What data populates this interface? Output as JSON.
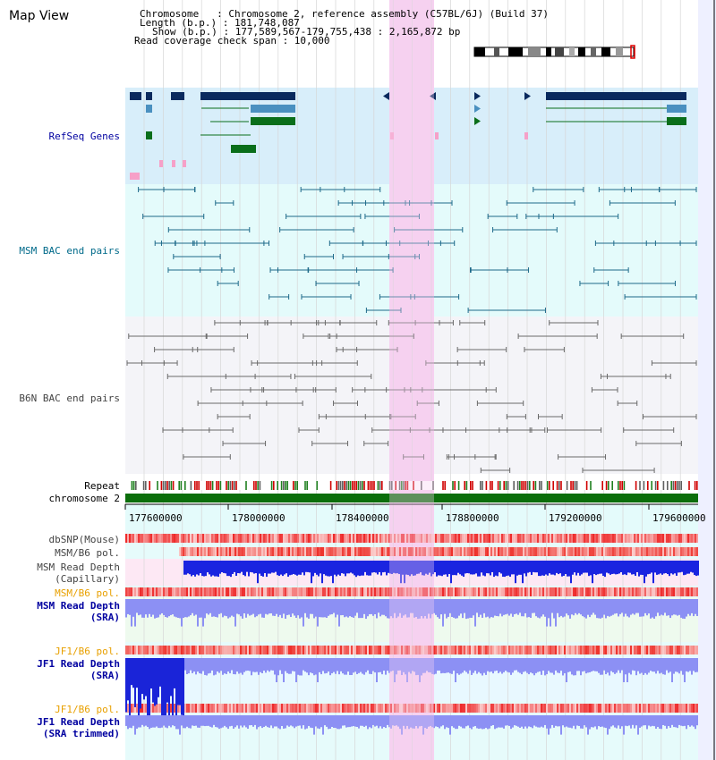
{
  "view_title": "Map View",
  "header": {
    "chromosome": "Chromosome   : Chromosome 2, reference assembly (C57BL/6J) (Build 37)",
    "length": "Length (b.p.) : 181,748,087",
    "show": "Show (b.p.) : 177,589,567-179,755,438 : 2,165,872 bp",
    "coverage_span": "Read coverage check span : 10,000"
  },
  "tracks": {
    "refseq": "RefSeq Genes",
    "msm_bac": "MSM BAC end pairs",
    "b6n_bac": "B6N BAC end pairs",
    "repeat": "Repeat",
    "chromosome": "chromosome 2",
    "dbsnp": "dbSNP(Mouse)",
    "msm_b6_pol_1": "MSM/B6 pol.",
    "msm_read_depth_cap_1": "MSM Read Depth",
    "msm_read_depth_cap_2": "(Capillary)",
    "msm_b6_pol_2": "MSM/B6 pol.",
    "msm_read_depth_sra_1": "MSM Read Depth",
    "msm_read_depth_sra_2": "(SRA)",
    "jf1_b6_pol_1": "JF1/B6 pol.",
    "jf1_read_depth_sra_1": "JF1 Read Depth",
    "jf1_read_depth_sra_2": "(SRA)",
    "jf1_b6_pol_2": "JF1/B6 pol.",
    "jf1_read_depth_trim_1": "JF1 Read Depth",
    "jf1_read_depth_trim_2": "(SRA trimmed)"
  },
  "axis_ticks": [
    "177600000",
    "178000000",
    "178400000",
    "178800000",
    "179200000",
    "179600000"
  ],
  "colors": {
    "highlight": "#f6d2f0",
    "refseq_bg": "#d8eefa",
    "bac_bg": "#e4fbfb",
    "b6n_bg": "#f4f4f8",
    "chrom_green": "#0b6e0b",
    "depth_blue": "#2030e8",
    "depth_light": "#8c90f4",
    "pol_red": "#f08080",
    "label_orange": "#e8a000",
    "label_blue": "#0000a0",
    "label_teal": "#006a8a"
  }
}
